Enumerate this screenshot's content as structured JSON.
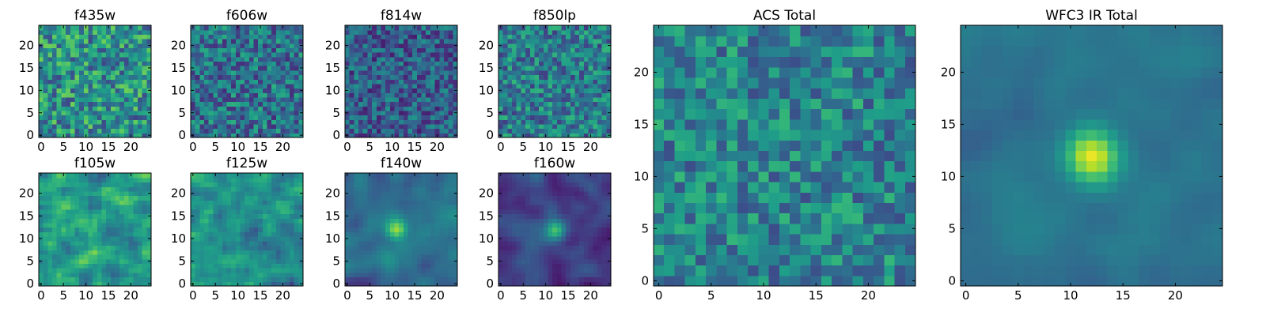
{
  "figure": {
    "colormap": "viridis",
    "colormap_stops": [
      "#440154",
      "#482878",
      "#3e4989",
      "#31688e",
      "#26828e",
      "#1f9e89",
      "#35b779",
      "#6ece58",
      "#b5de2b",
      "#fde725"
    ]
  },
  "chart_data": [
    {
      "type": "heatmap",
      "title": "f435w",
      "size": 25,
      "xlim": [
        0,
        24
      ],
      "ylim": [
        0,
        24
      ],
      "xticks": [
        0,
        5,
        10,
        15,
        20
      ],
      "yticks": [
        0,
        5,
        10,
        15,
        20
      ],
      "pattern": "noise",
      "seed": 11,
      "level": 0.5,
      "spread": 0.28
    },
    {
      "type": "heatmap",
      "title": "f606w",
      "size": 25,
      "xlim": [
        0,
        24
      ],
      "ylim": [
        0,
        24
      ],
      "xticks": [
        0,
        5,
        10,
        15,
        20
      ],
      "yticks": [
        0,
        5,
        10,
        15,
        20
      ],
      "pattern": "noise",
      "seed": 23,
      "level": 0.38,
      "spread": 0.25
    },
    {
      "type": "heatmap",
      "title": "f814w",
      "size": 25,
      "xlim": [
        0,
        24
      ],
      "ylim": [
        0,
        24
      ],
      "xticks": [
        0,
        5,
        10,
        15,
        20
      ],
      "yticks": [
        0,
        5,
        10,
        15,
        20
      ],
      "pattern": "noise",
      "seed": 37,
      "level": 0.3,
      "spread": 0.22
    },
    {
      "type": "heatmap",
      "title": "f850lp",
      "size": 25,
      "xlim": [
        0,
        24
      ],
      "ylim": [
        0,
        24
      ],
      "xticks": [
        0,
        5,
        10,
        15,
        20
      ],
      "yticks": [
        0,
        5,
        10,
        15,
        20
      ],
      "pattern": "noise",
      "seed": 41,
      "level": 0.42,
      "spread": 0.24
    },
    {
      "type": "heatmap",
      "title": "ACS Total",
      "size": 25,
      "xlim": [
        0,
        24
      ],
      "ylim": [
        0,
        24
      ],
      "xticks": [
        0,
        5,
        10,
        15,
        20
      ],
      "yticks": [
        0,
        5,
        10,
        15,
        20
      ],
      "pattern": "noise",
      "seed": 53,
      "level": 0.45,
      "spread": 0.22
    },
    {
      "type": "heatmap",
      "title": "WFC3 IR Total",
      "size": 25,
      "xlim": [
        0,
        24
      ],
      "ylim": [
        0,
        24
      ],
      "xticks": [
        0,
        5,
        10,
        15,
        20
      ],
      "yticks": [
        0,
        5,
        10,
        15,
        20
      ],
      "pattern": "source",
      "seed": 67,
      "level": 0.38,
      "spread": 0.07,
      "source": {
        "x": 12,
        "y": 12,
        "amp": 0.55,
        "sigma": 1.8
      }
    },
    {
      "type": "heatmap",
      "title": "f105w",
      "size": 25,
      "xlim": [
        0,
        24
      ],
      "ylim": [
        0,
        24
      ],
      "xticks": [
        0,
        5,
        10,
        15,
        20
      ],
      "yticks": [
        0,
        5,
        10,
        15,
        20
      ],
      "pattern": "smooth",
      "seed": 71,
      "level": 0.55,
      "spread": 0.25
    },
    {
      "type": "heatmap",
      "title": "f125w",
      "size": 25,
      "xlim": [
        0,
        24
      ],
      "ylim": [
        0,
        24
      ],
      "xticks": [
        0,
        5,
        10,
        15,
        20
      ],
      "yticks": [
        0,
        5,
        10,
        15,
        20
      ],
      "pattern": "smooth",
      "seed": 83,
      "level": 0.45,
      "spread": 0.25
    },
    {
      "type": "heatmap",
      "title": "f140w",
      "size": 25,
      "xlim": [
        0,
        24
      ],
      "ylim": [
        0,
        24
      ],
      "xticks": [
        0,
        5,
        10,
        15,
        20
      ],
      "yticks": [
        0,
        5,
        10,
        15,
        20
      ],
      "pattern": "source",
      "seed": 97,
      "level": 0.33,
      "spread": 0.18,
      "source": {
        "x": 11,
        "y": 12,
        "amp": 0.45,
        "sigma": 1.6
      }
    },
    {
      "type": "heatmap",
      "title": "f160w",
      "size": 25,
      "xlim": [
        0,
        24
      ],
      "ylim": [
        0,
        24
      ],
      "xticks": [
        0,
        5,
        10,
        15,
        20
      ],
      "yticks": [
        0,
        5,
        10,
        15,
        20
      ],
      "pattern": "source",
      "seed": 101,
      "level": 0.2,
      "spread": 0.14,
      "source": {
        "x": 12,
        "y": 12,
        "amp": 0.55,
        "sigma": 1.8
      }
    }
  ]
}
